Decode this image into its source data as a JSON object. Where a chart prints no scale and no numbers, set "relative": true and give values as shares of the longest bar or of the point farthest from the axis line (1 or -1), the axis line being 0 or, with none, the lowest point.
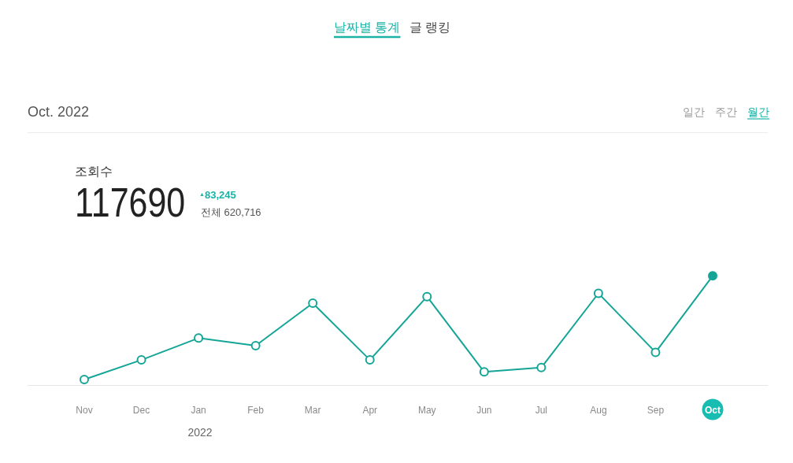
{
  "chart_data": {
    "type": "line",
    "title": "Oct. 2022",
    "categories": [
      "Nov",
      "Dec",
      "Jan",
      "Feb",
      "Mar",
      "Apr",
      "May",
      "Jun",
      "Jul",
      "Aug",
      "Sep",
      "Oct"
    ],
    "series": [
      {
        "color": "#14a597",
        "values": [
          0.05,
          0.23,
          0.43,
          0.36,
          0.75,
          0.23,
          0.81,
          0.12,
          0.16,
          0.84,
          0.3,
          1
        ]
      }
    ],
    "relative": true,
    "marker": "circle",
    "line_style": "solid",
    "annotations": [
      "날짜별 통계",
      "글 랭킹",
      "일간",
      "주간",
      "월간",
      "조회수",
      "117690",
      "$^{▲}$83,245",
      "전체 620,716",
      "2022"
    ]
  }
}
